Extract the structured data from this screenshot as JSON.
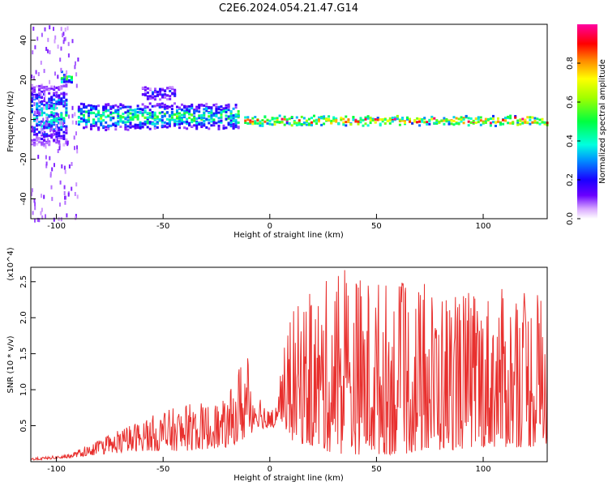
{
  "title": "C2E6.2024.054.21.47.G14",
  "colors": {
    "snr_line": "#e8302e",
    "axis": "#000000",
    "background": "#ffffff"
  },
  "chart_data": [
    {
      "type": "heatmap",
      "title": "C2E6.2024.054.21.47.G14",
      "xlabel": "Height of straight line (km)",
      "ylabel": "Frequency (Hz)",
      "xlim": [
        -112,
        130
      ],
      "ylim": [
        -50,
        48
      ],
      "xticks": [
        -100,
        -50,
        0,
        50,
        100
      ],
      "yticks": [
        -40,
        -20,
        0,
        20,
        40
      ],
      "colorbar": {
        "label": "Normalized spectral amplitude",
        "range": [
          0.0,
          1.0
        ],
        "ticks": [
          "0.0",
          "0.2",
          "0.4",
          "0.6",
          "0.8"
        ],
        "colormap": "gist_ncar-like (white-purple-blue-cyan-green-yellow-red-magenta)"
      },
      "description_of_trace": [
        {
          "x_range": [
            -112,
            -95
          ],
          "y_center": 3,
          "spread": 15,
          "amplitude": 0.35
        },
        {
          "x_range": [
            -98,
            -93
          ],
          "y_center": 22,
          "spread": 3,
          "amplitude": 0.45
        },
        {
          "x_range": [
            -90,
            -15
          ],
          "y_center": 2,
          "spread": 6,
          "amplitude": 0.45
        },
        {
          "x_range": [
            -60,
            -45
          ],
          "y_center": 14,
          "spread": 3,
          "amplitude": 0.2
        },
        {
          "x_range": [
            -12,
            130
          ],
          "y_center": 0,
          "spread": 2,
          "amplitude": 0.75
        }
      ]
    },
    {
      "type": "line",
      "xlabel": "Height of straight line (km)",
      "ylabel": "SNR (10 * v/v)",
      "y_scale_label": "(x10^4)",
      "xlim": [
        -112,
        130
      ],
      "ylim": [
        0,
        2.7
      ],
      "xticks": [
        -100,
        -50,
        0,
        50,
        100
      ],
      "yticks": [
        0.5,
        1.0,
        1.5,
        2.0,
        2.5
      ],
      "series": [
        {
          "color": "#e8302e",
          "envelope": [
            {
              "x": -112,
              "base": 0.02,
              "peak": 0.05
            },
            {
              "x": -95,
              "base": 0.05,
              "peak": 0.1
            },
            {
              "x": -80,
              "base": 0.1,
              "peak": 0.3
            },
            {
              "x": -60,
              "base": 0.15,
              "peak": 0.6
            },
            {
              "x": -40,
              "base": 0.15,
              "peak": 0.8
            },
            {
              "x": -20,
              "base": 0.2,
              "peak": 0.85
            },
            {
              "x": -12,
              "base": 0.3,
              "peak": 1.6
            },
            {
              "x": -5,
              "base": 0.5,
              "peak": 1.0
            },
            {
              "x": 0,
              "base": 0.4,
              "peak": 0.7
            },
            {
              "x": 5,
              "base": 0.6,
              "peak": 1.3
            },
            {
              "x": 10,
              "base": 0.3,
              "peak": 2.1
            },
            {
              "x": 25,
              "base": 0.15,
              "peak": 2.5
            },
            {
              "x": 35,
              "base": 0.1,
              "peak": 2.7
            },
            {
              "x": 60,
              "base": 0.1,
              "peak": 2.5
            },
            {
              "x": 100,
              "base": 0.2,
              "peak": 2.4
            },
            {
              "x": 130,
              "base": 0.2,
              "peak": 2.4
            }
          ]
        }
      ]
    }
  ]
}
